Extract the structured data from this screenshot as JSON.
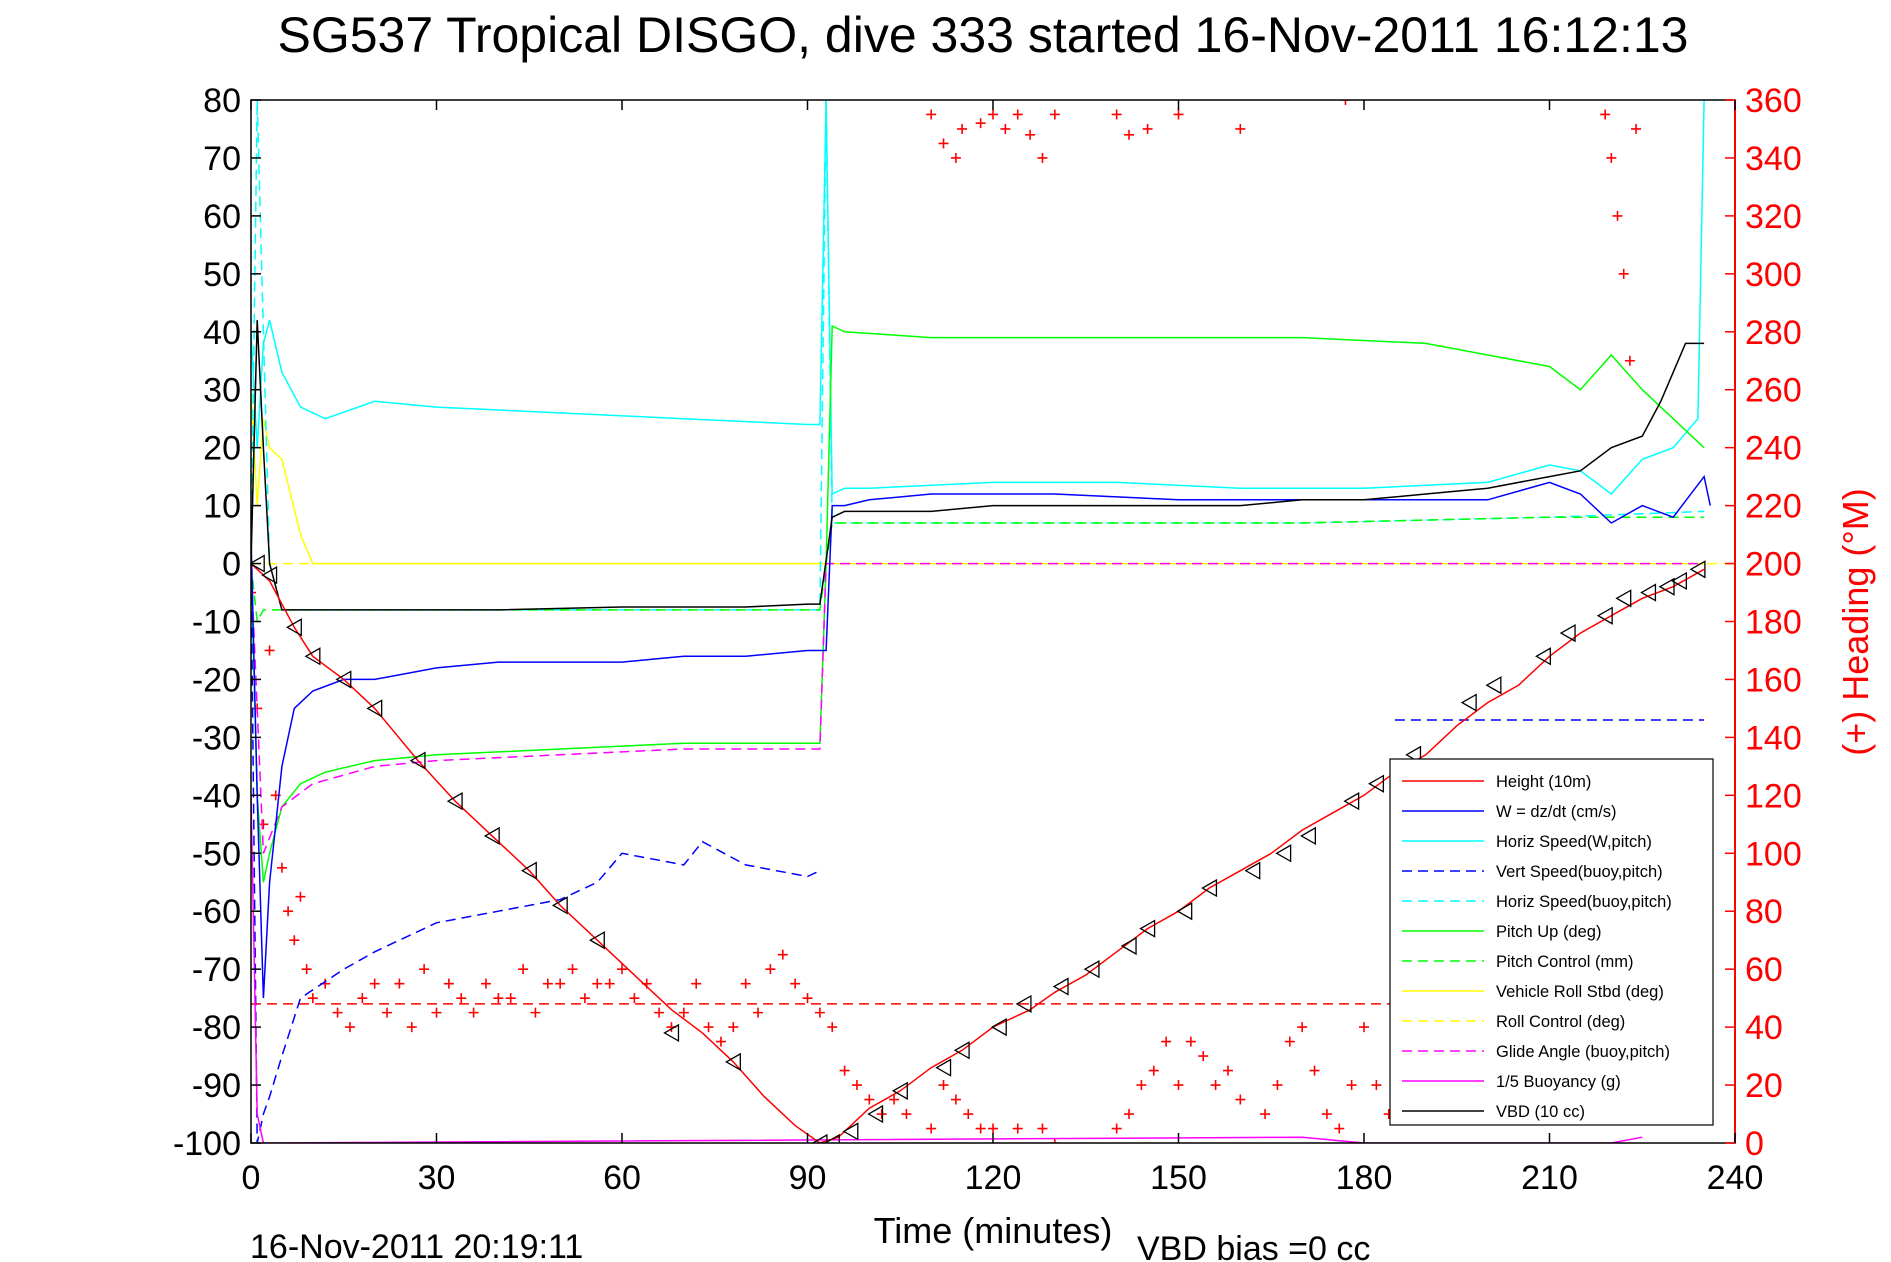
{
  "figure": {
    "title": "SG537 Tropical DISGO, dive 333 started 16-Nov-2011 16:12:13",
    "xlabel": "Time (minutes)",
    "right_ylabel": "(+) Heading (°M)",
    "footer_left": "16-Nov-2011 20:19:11",
    "footer_right": "VBD bias =0 cc"
  },
  "chart_data": {
    "type": "line",
    "title": "SG537 Tropical DISGO, dive 333 started 16-Nov-2011 16:12:13",
    "xlabel": "Time (minutes)",
    "ylabel": "",
    "y2label": "(+) Heading (°M)",
    "xlim": [
      0,
      240
    ],
    "ylim": [
      -100,
      80
    ],
    "y2lim": [
      0,
      360
    ],
    "xticks": [
      "0",
      "30",
      "60",
      "90",
      "120",
      "150",
      "180",
      "210",
      "240"
    ],
    "yticks": [
      "80",
      "70",
      "60",
      "50",
      "40",
      "30",
      "20",
      "10",
      "0",
      "-10",
      "-20",
      "-30",
      "-40",
      "-50",
      "-60",
      "-70",
      "-80",
      "-90",
      "-100"
    ],
    "y2ticks": [
      "360",
      "340",
      "320",
      "300",
      "280",
      "260",
      "240",
      "220",
      "200",
      "180",
      "160",
      "140",
      "120",
      "100",
      "80",
      "60",
      "40",
      "20",
      "0"
    ],
    "grid": false,
    "legend_position": "bottom-right",
    "colors": {
      "red": "#ff0000",
      "blue": "#0000ff",
      "cyan": "#00ffff",
      "green": "#00ff00",
      "yellow": "#ffff00",
      "magenta": "#ff00ff",
      "black": "#000000"
    },
    "series": [
      {
        "name": "Height (10m)",
        "color": "#ff0000",
        "dash": "solid",
        "x": [
          0,
          1,
          3,
          7,
          10,
          15,
          20,
          27,
          33,
          39,
          45,
          50,
          56,
          63,
          68,
          73,
          78,
          83,
          88,
          92,
          95,
          100,
          105,
          110,
          115,
          120,
          126,
          130,
          135,
          140,
          145,
          150,
          155,
          160,
          165,
          170,
          175,
          180,
          185,
          190,
          195,
          200,
          205,
          210,
          215,
          220,
          225,
          230,
          235
        ],
        "y": [
          0,
          -1,
          -3,
          -11,
          -16,
          -20,
          -25,
          -34,
          -41,
          -47,
          -53,
          -59,
          -65,
          -72,
          -77,
          -81,
          -86,
          -92,
          -97,
          -100,
          -99,
          -94,
          -91,
          -87,
          -84,
          -80,
          -77,
          -74,
          -71,
          -67,
          -63,
          -60,
          -56,
          -53,
          -50,
          -46,
          -43,
          -40,
          -36,
          -33,
          -28,
          -24,
          -21,
          -16,
          -12,
          -9,
          -6,
          -4,
          -1
        ]
      },
      {
        "name": "W = dz/dt (cm/s)",
        "color": "#0000ff",
        "dash": "solid",
        "x": [
          0,
          1,
          2,
          3,
          5,
          7,
          10,
          15,
          20,
          30,
          40,
          50,
          60,
          70,
          80,
          90,
          93,
          94,
          96,
          100,
          110,
          120,
          130,
          150,
          170,
          190,
          200,
          210,
          215,
          220,
          225,
          230,
          235,
          236
        ],
        "y": [
          5,
          -40,
          -75,
          -55,
          -35,
          -25,
          -22,
          -20,
          -20,
          -18,
          -17,
          -17,
          -17,
          -16,
          -16,
          -15,
          -15,
          10,
          10,
          11,
          12,
          12,
          12,
          11,
          11,
          11,
          11,
          14,
          12,
          7,
          10,
          8,
          15,
          10
        ]
      },
      {
        "name": "Horiz Speed(W,pitch)",
        "color": "#00ffff",
        "dash": "solid",
        "x": [
          0,
          1,
          2,
          3,
          5,
          8,
          12,
          20,
          30,
          50,
          70,
          90,
          92,
          93,
          94,
          96,
          100,
          120,
          140,
          160,
          180,
          200,
          210,
          215,
          220,
          225,
          230,
          234,
          235
        ],
        "y": [
          40,
          20,
          38,
          42,
          33,
          27,
          25,
          28,
          27,
          26,
          25,
          24,
          24,
          80,
          12,
          13,
          13,
          14,
          14,
          13,
          13,
          14,
          17,
          16,
          12,
          18,
          20,
          25,
          80
        ]
      },
      {
        "name": "Vert Speed(buoy,pitch)",
        "color": "#0000ff",
        "dash": "dashed",
        "x": [
          0,
          1,
          2,
          3,
          5,
          8,
          15,
          20,
          30,
          40,
          50,
          56,
          60,
          70,
          73,
          80,
          90,
          92
        ],
        "y": [
          0,
          -100,
          -95,
          -92,
          -85,
          -75,
          -70,
          -67,
          -62,
          -60,
          -58,
          -55,
          -50,
          -52,
          -48,
          -52,
          -54,
          -53
        ]
      },
      {
        "name": "Horiz Speed(buoy,pitch)",
        "color": "#00ffff",
        "dash": "dashed",
        "x": [
          0,
          1,
          2,
          3,
          5,
          10,
          30,
          60,
          90,
          92,
          93,
          94,
          96,
          130,
          170,
          210,
          235
        ],
        "y": [
          0,
          80,
          40,
          0,
          -8,
          -8,
          -8,
          -8,
          -8,
          -8,
          80,
          7,
          7,
          7,
          7,
          8,
          9
        ]
      },
      {
        "name": "Pitch Up (deg)",
        "color": "#00ff00",
        "dash": "solid",
        "x": [
          0,
          1,
          2,
          3,
          5,
          8,
          12,
          20,
          30,
          50,
          70,
          92,
          93,
          94,
          96,
          110,
          130,
          150,
          170,
          190,
          200,
          210,
          215,
          220,
          225,
          230,
          235
        ],
        "y": [
          0,
          -40,
          -55,
          -50,
          -42,
          -38,
          -36,
          -34,
          -33,
          -32,
          -31,
          -31,
          0,
          41,
          40,
          39,
          39,
          39,
          39,
          38,
          36,
          34,
          30,
          36,
          30,
          25,
          20
        ]
      },
      {
        "name": "Pitch Control (mm)",
        "color": "#00ff00",
        "dash": "dashed",
        "x": [
          0,
          1,
          2,
          5,
          10,
          30,
          60,
          90,
          92,
          93,
          94,
          96,
          130,
          170,
          210,
          235
        ],
        "y": [
          0,
          -10,
          -8,
          -8,
          -8,
          -8,
          -8,
          -8,
          -8,
          0,
          7,
          7,
          7,
          7,
          8,
          8
        ]
      },
      {
        "name": "Vehicle Roll Stbd (deg)",
        "color": "#ffff00",
        "dash": "solid",
        "x": [
          0,
          1,
          2,
          3,
          5,
          8,
          10,
          20,
          40,
          60,
          80,
          92,
          94,
          100,
          130,
          170,
          210,
          220,
          230,
          235
        ],
        "y": [
          30,
          10,
          25,
          20,
          18,
          5,
          0,
          0,
          0,
          0,
          0,
          0,
          0,
          0,
          0,
          0,
          0,
          0,
          0,
          0
        ]
      },
      {
        "name": "Roll Control (deg)",
        "color": "#ffff00",
        "dash": "dashed",
        "x": [
          0,
          240
        ],
        "y": [
          0,
          0
        ]
      },
      {
        "name": "Glide Angle (buoy,pitch)",
        "color": "#ff00ff",
        "dash": "dashed",
        "x": [
          0,
          2,
          5,
          10,
          20,
          30,
          50,
          70,
          92,
          93,
          94,
          235
        ],
        "y": [
          0,
          -50,
          -42,
          -38,
          -35,
          -34,
          -33,
          -32,
          -32,
          0,
          0,
          0
        ]
      },
      {
        "name": "1/5 Buoyancy (g)",
        "color": "#ff00ff",
        "dash": "solid",
        "x": [
          0,
          1,
          2,
          170,
          180,
          220,
          225
        ],
        "y": [
          -40,
          -95,
          -100,
          -99,
          -100,
          -100,
          -99
        ]
      },
      {
        "name": "VBD (10 cc)",
        "color": "#000000",
        "dash": "solid",
        "x": [
          0,
          1,
          2,
          3,
          5,
          20,
          40,
          60,
          80,
          90,
          92,
          94,
          96,
          110,
          120,
          140,
          160,
          170,
          180,
          190,
          200,
          210,
          215,
          220,
          225,
          228,
          230,
          232,
          235
        ],
        "y": [
          0,
          42,
          20,
          0,
          -8,
          -8,
          -8,
          -7.5,
          -7.5,
          -7,
          -7,
          8,
          9,
          9,
          10,
          10,
          10,
          11,
          11,
          12,
          13,
          15,
          16,
          20,
          22,
          28,
          33,
          38,
          38
        ]
      }
    ],
    "heading": {
      "name": "Heading",
      "color": "#ff0000",
      "marker": "+",
      "axis": "right",
      "x": [
        0,
        1,
        2,
        3,
        4,
        5,
        6,
        7,
        8,
        9,
        10,
        12,
        14,
        16,
        18,
        20,
        22,
        24,
        26,
        28,
        30,
        32,
        34,
        36,
        38,
        40,
        42,
        44,
        46,
        48,
        50,
        52,
        54,
        56,
        58,
        60,
        62,
        64,
        66,
        68,
        70,
        72,
        74,
        76,
        78,
        80,
        82,
        84,
        86,
        88,
        90,
        92,
        94,
        96,
        98,
        100,
        102,
        104,
        106,
        110,
        112,
        114,
        116,
        118,
        120,
        124,
        128,
        130,
        140,
        142,
        144,
        146,
        148,
        150,
        152,
        154,
        156,
        158,
        160,
        164,
        166,
        168,
        170,
        172,
        174,
        176,
        178,
        180,
        182,
        184,
        186,
        208,
        210,
        212,
        214,
        216,
        218,
        220,
        221,
        222,
        223,
        224
      ],
      "y": [
        190,
        150,
        110,
        170,
        120,
        95,
        80,
        70,
        85,
        60,
        50,
        55,
        45,
        40,
        50,
        55,
        45,
        55,
        40,
        60,
        45,
        55,
        50,
        45,
        55,
        50,
        50,
        60,
        45,
        55,
        55,
        60,
        50,
        55,
        55,
        60,
        50,
        55,
        45,
        40,
        45,
        55,
        40,
        35,
        40,
        55,
        45,
        60,
        65,
        55,
        50,
        45,
        40,
        25,
        20,
        15,
        10,
        15,
        10,
        5,
        20,
        15,
        10,
        5,
        5,
        5,
        5,
        0,
        5,
        10,
        20,
        25,
        35,
        20,
        35,
        30,
        20,
        25,
        15,
        10,
        20,
        35,
        40,
        25,
        10,
        5,
        20,
        40,
        20,
        10,
        10,
        50,
        50,
        40,
        35,
        45,
        50,
        55,
        60,
        40,
        45,
        35
      ]
    },
    "heading_top_cluster": {
      "x": [
        110,
        112,
        114,
        115,
        118,
        120,
        122,
        124,
        126,
        128,
        130,
        140,
        142,
        145,
        150,
        160,
        177,
        219,
        220,
        221,
        222,
        223,
        224
      ],
      "y": [
        355,
        345,
        340,
        350,
        352,
        355,
        350,
        355,
        348,
        340,
        355,
        355,
        348,
        350,
        355,
        350,
        360,
        355,
        340,
        320,
        300,
        270,
        350
      ]
    },
    "reference_lines": [
      {
        "color": "#ff0000",
        "dash": "dashed",
        "y": -76,
        "x_start": 0,
        "x_end": 235
      },
      {
        "color": "#0000ff",
        "dash": "dashed",
        "y": -27,
        "x_start": 185,
        "x_end": 235
      }
    ],
    "markers": {
      "name": "Height (10m)",
      "shape": "triangle",
      "x": [
        1,
        3,
        7,
        10,
        15,
        20,
        27,
        33,
        39,
        45,
        50,
        56,
        68,
        78,
        92,
        94,
        97,
        101,
        105,
        112,
        115,
        121,
        125,
        131,
        136,
        142,
        145,
        151,
        155,
        162,
        167,
        171,
        178,
        182,
        186,
        188,
        197,
        201,
        209,
        213,
        219,
        222,
        226,
        229,
        231,
        234
      ],
      "y": [
        0,
        -2,
        -11,
        -16,
        -20,
        -25,
        -34,
        -41,
        -47,
        -53,
        -59,
        -65,
        -81,
        -86,
        -100,
        -100,
        -98,
        -95,
        -91,
        -87,
        -84,
        -80,
        -76,
        -73,
        -70,
        -66,
        -63,
        -60,
        -56,
        -53,
        -50,
        -47,
        -41,
        -38,
        -36,
        -33,
        -24,
        -21,
        -16,
        -12,
        -9,
        -6,
        -5,
        -4,
        -3,
        -1
      ]
    }
  }
}
